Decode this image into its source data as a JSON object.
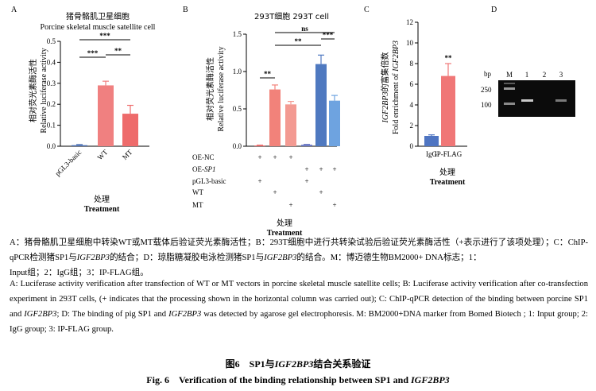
{
  "panels": {
    "A": {
      "letter": "A",
      "title_cn": "猪骨骼肌卫星细胞",
      "title_en": "Porcine skeletal muscle satellite cell",
      "ylabel_cn": "相对荧光素酶活性",
      "ylabel_en": "Relative luciferase activity",
      "xtitle_cn": "处理",
      "xtitle_en": "Treatment",
      "sig": [
        "***",
        "***",
        "**"
      ]
    },
    "B": {
      "letter": "B",
      "title": "293T细胞 293T cell",
      "ylabel_cn": "相对荧光素酶活性",
      "ylabel_en": "Relative luciferase activity",
      "row_labels": [
        "OE-NC",
        "OE-",
        "pGL3-basic",
        "WT",
        "MT"
      ],
      "row_label_italic": "SP1",
      "plus": "+",
      "xtitle_cn": "处理",
      "xtitle_en": "Treatment",
      "sig": [
        "**",
        "**",
        "***",
        "ns"
      ]
    },
    "C": {
      "letter": "C",
      "ylabel_cn_prefix": "IGF2BP3",
      "ylabel_cn": "的富集倍数",
      "ylabel_en": "Fold enrichment of",
      "ylabel_en_italic": "IGF2BP3",
      "xtitle_cn": "处理",
      "xtitle_en": "Treatment",
      "sig": [
        "**"
      ]
    },
    "D": {
      "letter": "D",
      "bp": "bp",
      "lanes": [
        "M",
        "1",
        "2",
        "3"
      ],
      "markers": [
        "250",
        "100"
      ]
    }
  },
  "chart_data": [
    {
      "type": "bar",
      "panel": "A",
      "categories": [
        "pGL3-basic",
        "WT",
        "MT"
      ],
      "values": [
        0.005,
        0.29,
        0.155
      ],
      "errors": [
        0.003,
        0.02,
        0.04
      ],
      "colors": [
        "#4a6fb3",
        "#f08080",
        "#ee6b6b"
      ],
      "ylim": [
        0,
        0.5
      ],
      "yticks": [
        "0.0",
        "0.1",
        "0.2",
        "0.3",
        "0.4",
        "0.5"
      ]
    },
    {
      "type": "bar",
      "panel": "B",
      "categories": [
        "1",
        "2",
        "3",
        "4",
        "5",
        "6"
      ],
      "values": [
        0.01,
        0.76,
        0.56,
        0.02,
        1.1,
        0.61
      ],
      "errors": [
        0.005,
        0.06,
        0.04,
        0.005,
        0.12,
        0.07
      ],
      "colors": [
        "#e96a6a",
        "#f2827a",
        "#f39a92",
        "#6a78c4",
        "#4f79c0",
        "#6ea3e0"
      ],
      "ylim": [
        0,
        1.5
      ],
      "yticks": [
        "0.0",
        "0.5",
        "1.0",
        "1.5"
      ],
      "plus_matrix": [
        [
          true,
          true,
          true,
          false,
          false,
          false
        ],
        [
          false,
          false,
          false,
          true,
          true,
          true
        ],
        [
          true,
          false,
          false,
          true,
          false,
          false
        ],
        [
          false,
          true,
          false,
          false,
          true,
          false
        ],
        [
          false,
          false,
          true,
          false,
          false,
          true
        ]
      ]
    },
    {
      "type": "bar",
      "panel": "C",
      "categories": [
        "IgG",
        "IP-FLAG"
      ],
      "values": [
        1.0,
        6.8
      ],
      "errors": [
        0.1,
        1.2
      ],
      "colors": [
        "#4f75c2",
        "#f07777"
      ],
      "ylim": [
        0,
        12
      ],
      "yticks": [
        "0",
        "2",
        "4",
        "6",
        "8",
        "10",
        "12"
      ]
    }
  ],
  "caption": {
    "cn_1": "A：猪骨骼肌卫星细胞中转染WT或MT载体后验证荧光素酶活性；B：293T细胞中进行共转染试验后验证荧光素酶活性（+表示进行了该项处理）；C：ChIP-qPCR检测猪SP1与",
    "cn_1_italic": "IGF2BP3",
    "cn_1b": "的结合；D：琼脂糖凝胶电泳检测猪SP1与",
    "cn_1b_italic": "IGF2BP3",
    "cn_1c": "的结合。M：博迈德生物BM2000+ DNA标志；1：",
    "cn_2": "Input组；2：IgG组；3：IP-FLAG组。",
    "en_1": "A: Luciferase activity verification after transfection of WT or MT vectors in porcine skeletal muscle satellite cells; B: Luciferase activity verification after co-transfection experiment in 293T cells, (+ indicates that the processing shown in the horizontal column was carried out); C: ChIP-qPCR detection of the binding between porcine SP1 and",
    "en_1_italic": "IGF2BP3",
    "en_1b": "; D: The binding of pig SP1 and",
    "en_1b_italic": "IGF2BP3",
    "en_1c": "was detected by agarose gel electrophoresis. M: BM2000+DNA marker from Bomed Biotech ; 1: Input group; 2: IgG group; 3: IP-FLAG group.",
    "fig_cn_a": "图6　SP1与",
    "fig_cn_italic": "IGF2BP3",
    "fig_cn_b": "结合关系验证",
    "fig_en_a": "Fig. 6　Verification of the binding relationship between SP1 and",
    "fig_en_italic": "IGF2BP3"
  }
}
